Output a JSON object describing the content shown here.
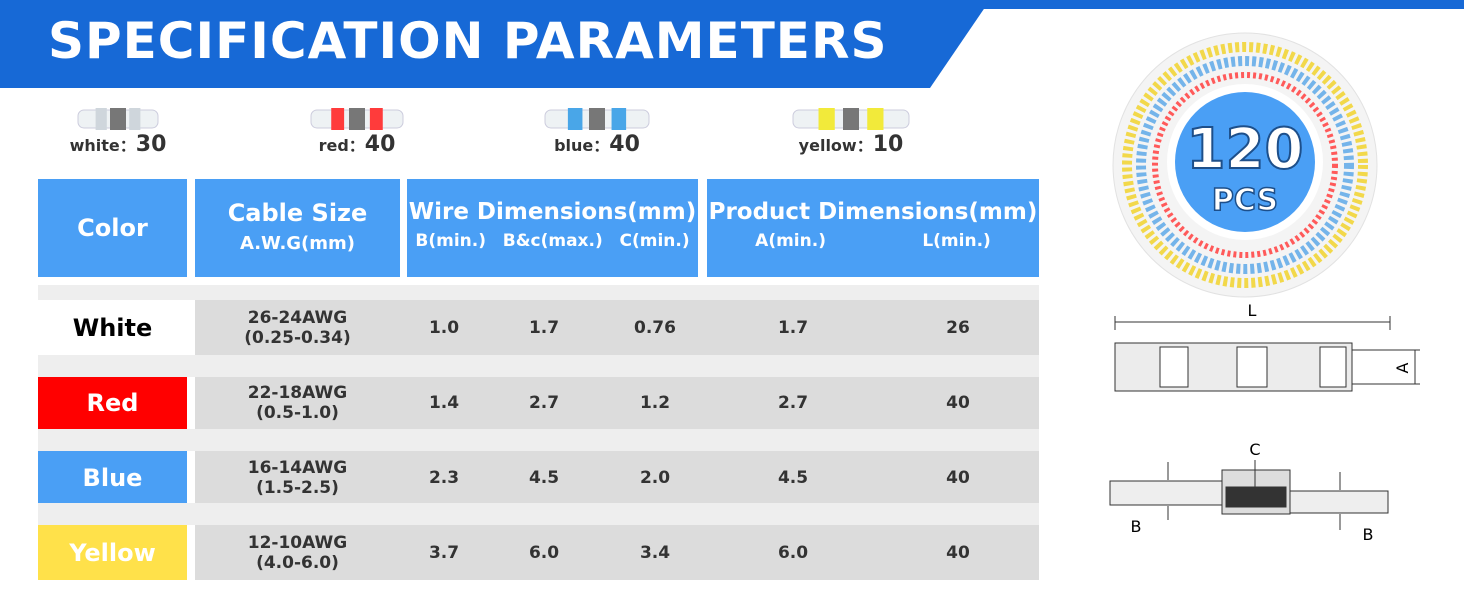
{
  "header": {
    "title": "SPECIFICATION PARAMETERS"
  },
  "variants": [
    {
      "label": "white：",
      "count": 30,
      "color": "#cfd6dc"
    },
    {
      "label": "red：",
      "count": 40,
      "color": "#ff3b3b"
    },
    {
      "label": "blue：",
      "count": 40,
      "color": "#49a6e8"
    },
    {
      "label": "yellow：",
      "count": 10,
      "color": "#f2ea3a"
    }
  ],
  "table": {
    "headers": {
      "color": "Color",
      "cable": [
        "Cable Size",
        "A.W.G(mm)"
      ],
      "wire": {
        "title": "Wire Dimensions(mm)",
        "cols": [
          "B(min.)",
          "B&c(max.)",
          "C(min.)"
        ]
      },
      "product": {
        "title": "Product Dimensions(mm)",
        "cols": [
          "A(min.)",
          "L(min.)"
        ]
      }
    },
    "rows": [
      {
        "color": "White",
        "swatch": "#ffffff",
        "text": "#000000",
        "cable": [
          "26-24AWG",
          "(0.25-0.34)"
        ],
        "wire": [
          "1.0",
          "1.7",
          "0.76"
        ],
        "product": [
          "1.7",
          "26"
        ]
      },
      {
        "color": "Red",
        "swatch": "#ff0000",
        "text": "#ffffff",
        "cable": [
          "22-18AWG",
          "(0.5-1.0)"
        ],
        "wire": [
          "1.4",
          "2.7",
          "1.2"
        ],
        "product": [
          "2.7",
          "40"
        ]
      },
      {
        "color": "Blue",
        "swatch": "#4a9ff5",
        "text": "#ffffff",
        "cable": [
          "16-14AWG",
          "(1.5-2.5)"
        ],
        "wire": [
          "2.3",
          "4.5",
          "2.0"
        ],
        "product": [
          "4.5",
          "40"
        ]
      },
      {
        "color": "Yellow",
        "swatch": "#ffe14a",
        "text": "#ffffff",
        "cable": [
          "12-10AWG",
          "(4.0-6.0)"
        ],
        "wire": [
          "3.7",
          "6.0",
          "3.4"
        ],
        "product": [
          "6.0",
          "40"
        ]
      }
    ]
  },
  "badge": {
    "count": "120",
    "unit": "PCS"
  },
  "diagram": {
    "length": "L",
    "diameter": "A",
    "center": "C",
    "end_left": "B",
    "end_right": "B"
  }
}
